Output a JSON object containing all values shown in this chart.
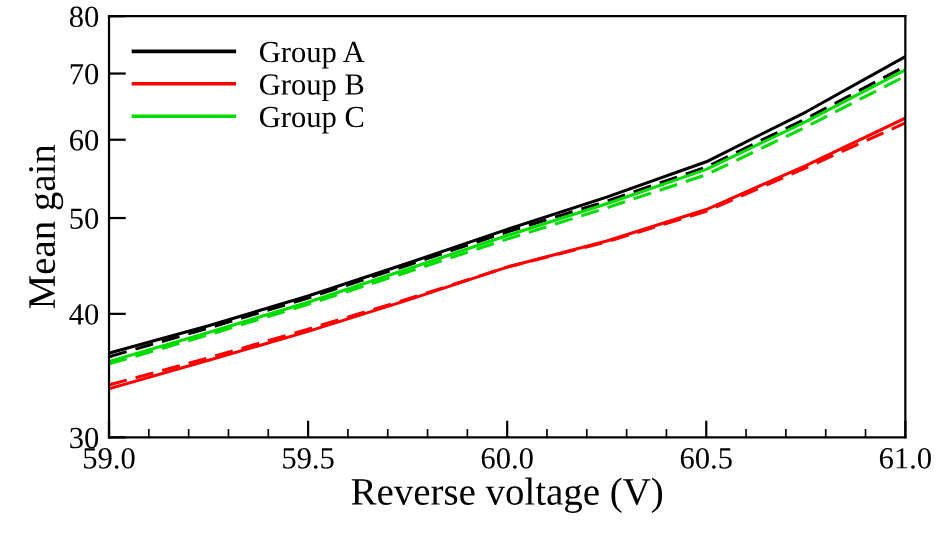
{
  "chart_data": {
    "type": "line",
    "xlabel": "Reverse voltage (V)",
    "ylabel": "Mean gain",
    "log": "y",
    "x": [
      59.0,
      59.25,
      59.5,
      59.75,
      60.0,
      60.25,
      60.5,
      60.75,
      61.0
    ],
    "series": [
      {
        "name": "Group A",
        "color": "#000000",
        "line_style": "solid",
        "values": [
          36.5,
          38.9,
          41.7,
          45.0,
          48.7,
          52.5,
          57.0,
          64.0,
          72.8
        ]
      },
      {
        "color": "#000000",
        "line_style": "dashed",
        "values": [
          36.2,
          38.7,
          41.5,
          44.8,
          48.4,
          52.0,
          56.3,
          63.0,
          71.2
        ]
      },
      {
        "name": "Group B",
        "color": "#ff0000",
        "line_style": "solid",
        "values": [
          33.6,
          35.9,
          38.4,
          41.3,
          44.6,
          47.4,
          51.0,
          56.5,
          63.1
        ]
      },
      {
        "color": "#ff0000",
        "line_style": "dashed",
        "values": [
          33.9,
          36.1,
          38.6,
          41.4,
          44.6,
          47.3,
          50.8,
          56.2,
          62.4
        ]
      },
      {
        "name": "Group C",
        "color": "#00dd00",
        "line_style": "solid",
        "values": [
          35.8,
          38.3,
          41.1,
          44.4,
          48.0,
          51.7,
          56.0,
          62.6,
          70.6
        ]
      },
      {
        "color": "#00dd00",
        "line_style": "dashed",
        "values": [
          35.6,
          38.1,
          40.9,
          44.1,
          47.6,
          51.2,
          55.3,
          61.8,
          69.6
        ]
      }
    ],
    "xlim": [
      59.0,
      61.0
    ],
    "xticks": [
      {
        "value": 59.0,
        "label": "59.0"
      },
      59.5,
      {
        "value": 60.0,
        "label": "60.0"
      },
      60.5,
      {
        "value": 61.0,
        "label": "61.0"
      }
    ],
    "ylim": [
      30,
      80
    ],
    "yticks": [
      30,
      40,
      50,
      60,
      70,
      80
    ],
    "grid": false,
    "legend": "top left",
    "marker": "none"
  }
}
